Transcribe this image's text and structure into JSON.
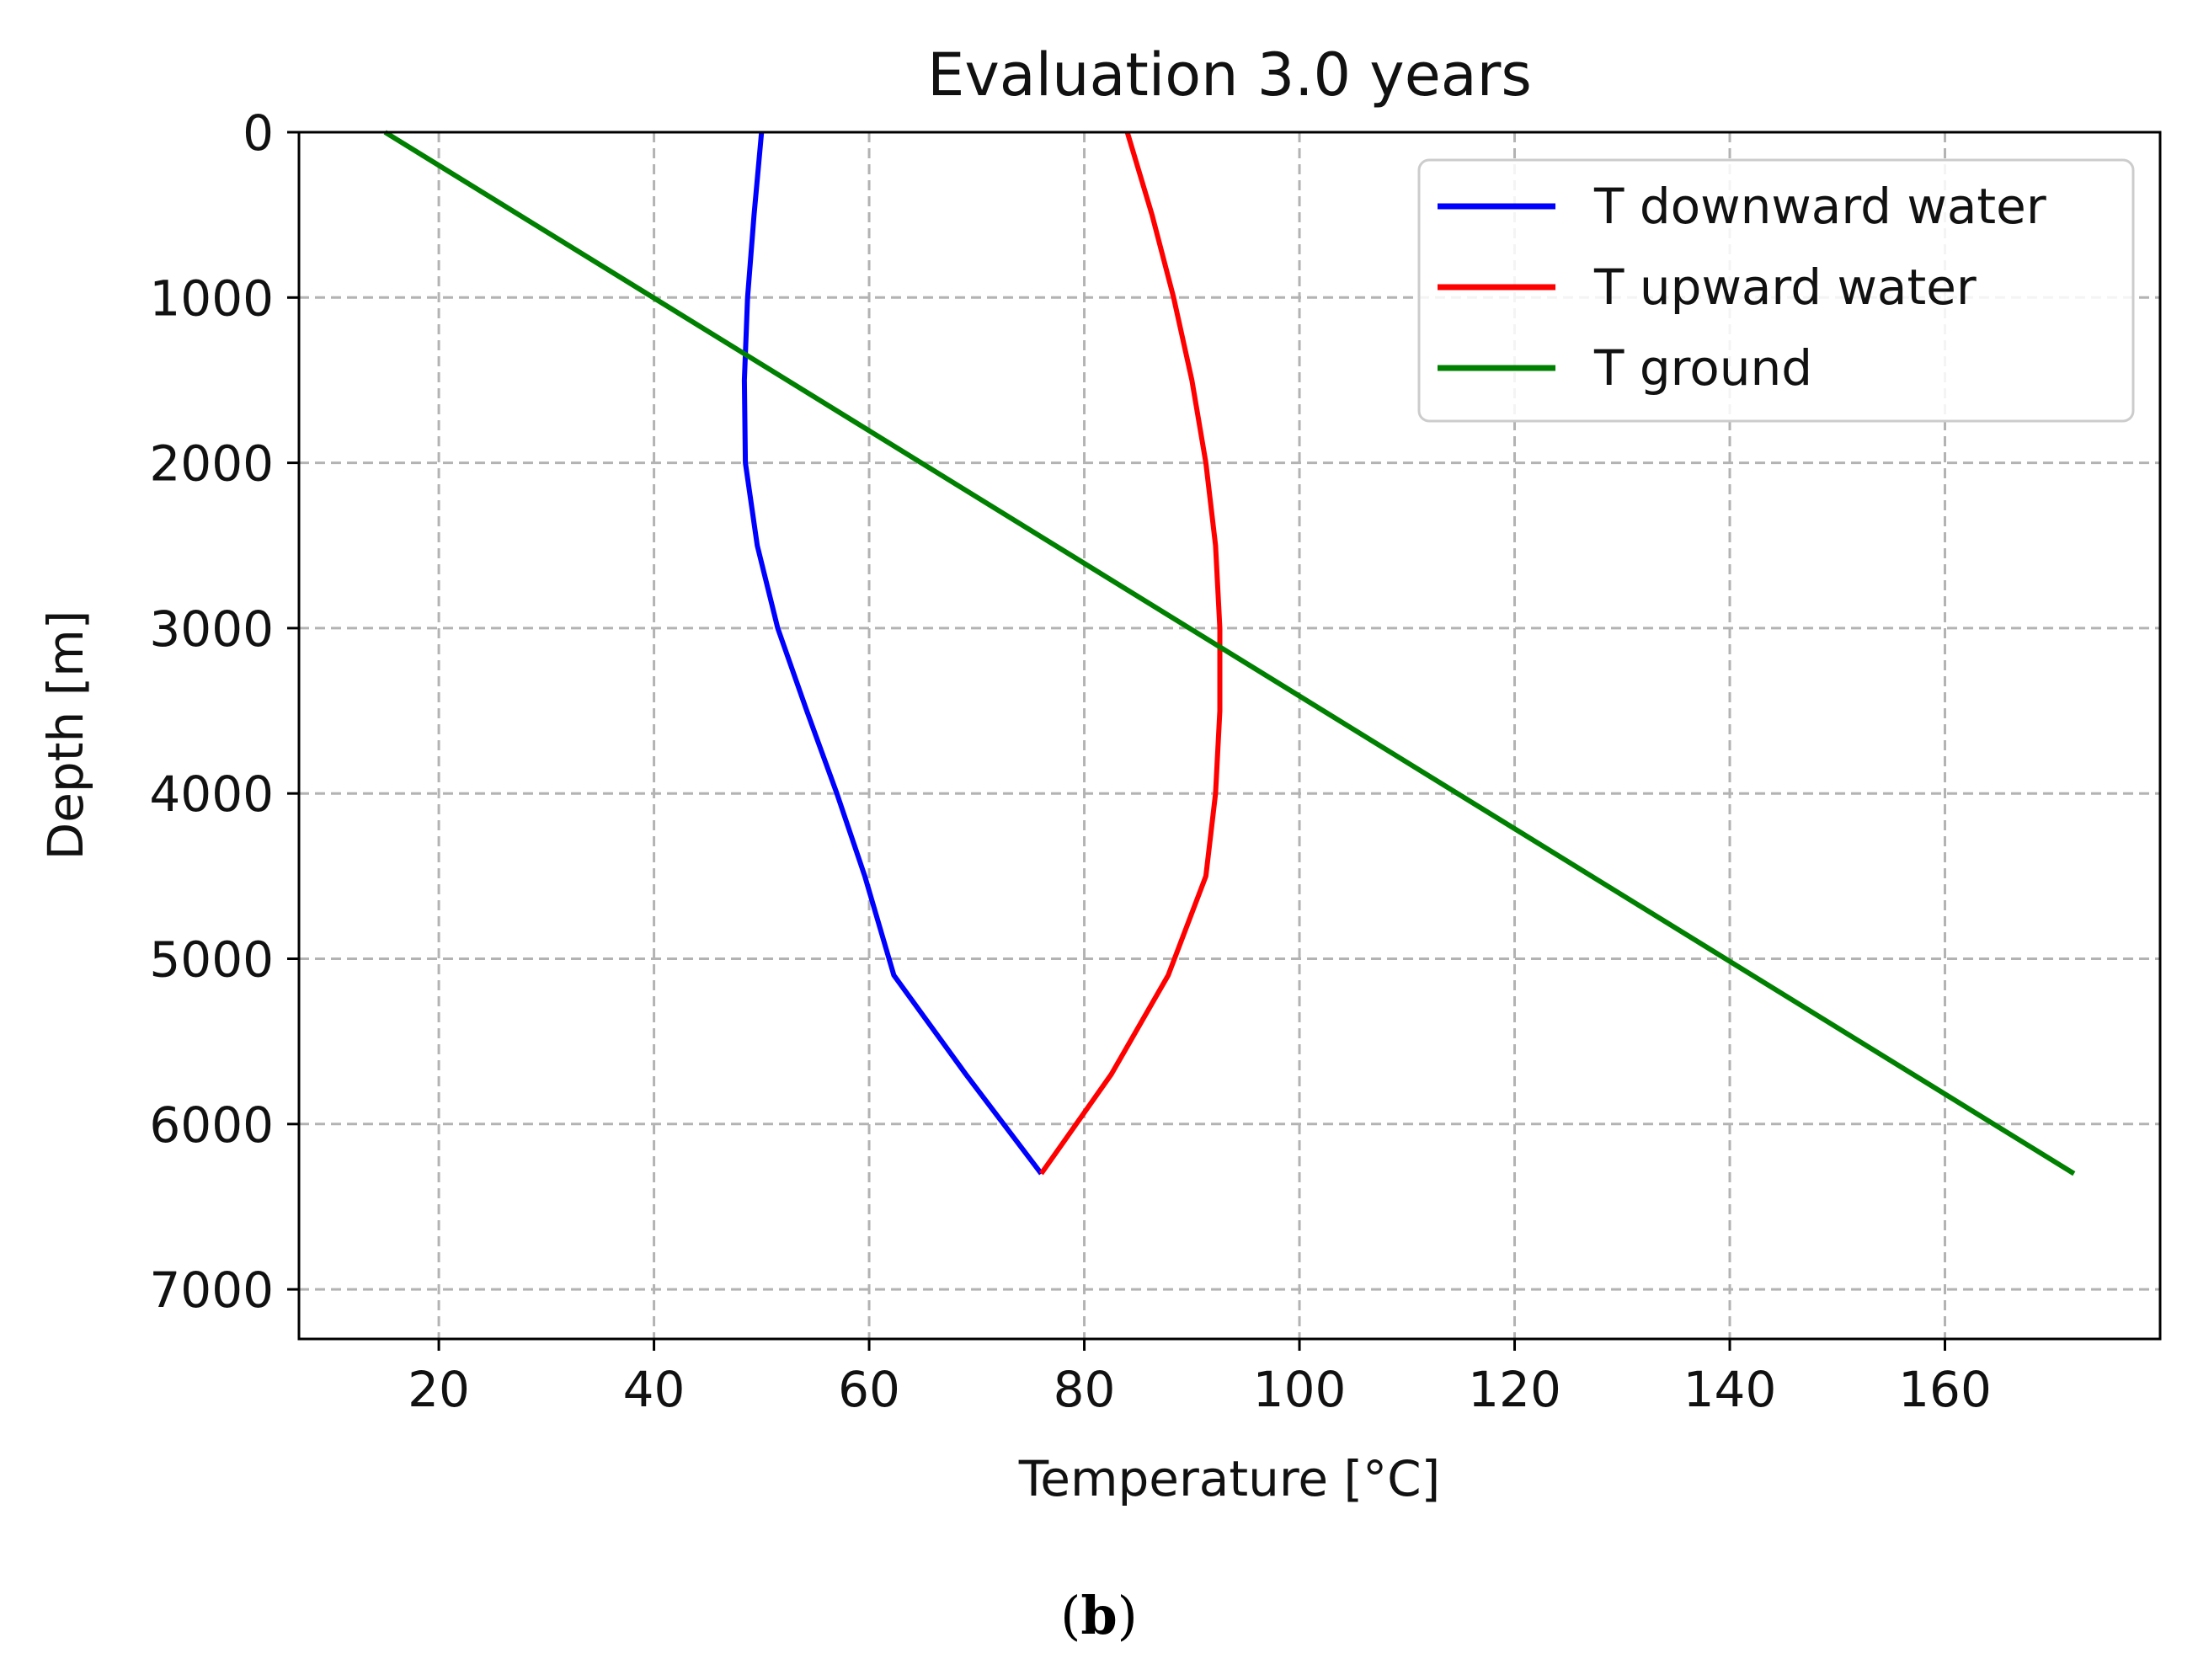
{
  "chart_data": {
    "type": "line",
    "title": "Evaluation 3.0 years",
    "xlabel": "Temperature [°C]",
    "ylabel": "Depth [m]",
    "xlim": [
      7,
      180
    ],
    "ylim": [
      7300,
      0
    ],
    "y_inverted": true,
    "xticks": [
      20,
      40,
      60,
      80,
      100,
      120,
      140,
      160
    ],
    "yticks": [
      0,
      1000,
      2000,
      3000,
      4000,
      5000,
      6000,
      7000
    ],
    "grid": true,
    "legend_position": "top-right",
    "series": [
      {
        "name": "T downward water",
        "color": "#0000ff",
        "points": [
          [
            50,
            0
          ],
          [
            49.3,
            500
          ],
          [
            48.7,
            1000
          ],
          [
            48.4,
            1500
          ],
          [
            48.5,
            2000
          ],
          [
            49.6,
            2500
          ],
          [
            51.5,
            3000
          ],
          [
            54.2,
            3500
          ],
          [
            57.0,
            4000
          ],
          [
            59.6,
            4500
          ],
          [
            62.3,
            5100
          ],
          [
            69.0,
            5700
          ],
          [
            76.0,
            6300
          ]
        ]
      },
      {
        "name": "T upward water",
        "color": "#ff0000",
        "points": [
          [
            84.0,
            0
          ],
          [
            86.3,
            500
          ],
          [
            88.3,
            1000
          ],
          [
            90.0,
            1500
          ],
          [
            91.3,
            2000
          ],
          [
            92.2,
            2500
          ],
          [
            92.6,
            3000
          ],
          [
            92.6,
            3500
          ],
          [
            92.2,
            4000
          ],
          [
            91.3,
            4500
          ],
          [
            87.8,
            5100
          ],
          [
            82.5,
            5700
          ],
          [
            76.0,
            6300
          ]
        ]
      },
      {
        "name": "T ground",
        "color": "#008000",
        "points": [
          [
            15,
            0
          ],
          [
            172,
            6300
          ]
        ]
      }
    ]
  },
  "panel_label": {
    "open": "(",
    "letter": "b",
    "close": ")"
  }
}
